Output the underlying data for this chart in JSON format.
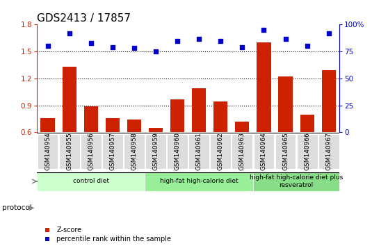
{
  "title": "GDS2413 / 17857",
  "samples": [
    "GSM140954",
    "GSM140955",
    "GSM140956",
    "GSM140957",
    "GSM140958",
    "GSM140959",
    "GSM140960",
    "GSM140961",
    "GSM140962",
    "GSM140963",
    "GSM140964",
    "GSM140965",
    "GSM140966",
    "GSM140967"
  ],
  "zscore": [
    0.76,
    1.33,
    0.89,
    0.76,
    0.74,
    0.65,
    0.97,
    1.09,
    0.94,
    0.72,
    1.6,
    1.22,
    0.8,
    1.29
  ],
  "percentile": [
    80,
    92,
    83,
    79,
    78,
    75,
    85,
    87,
    85,
    79,
    95,
    87,
    80,
    92
  ],
  "bar_color": "#cc2200",
  "dot_color": "#0000cc",
  "ylim_left": [
    0.6,
    1.8
  ],
  "ylim_right": [
    0,
    100
  ],
  "yticks_left": [
    0.6,
    0.9,
    1.2,
    1.5,
    1.8
  ],
  "yticks_right": [
    0,
    25,
    50,
    75,
    100
  ],
  "hline_values": [
    0.9,
    1.2,
    1.5
  ],
  "groups": [
    {
      "label": "control diet",
      "start": 0,
      "end": 4,
      "color": "#ccffcc"
    },
    {
      "label": "high-fat high-calorie diet",
      "start": 5,
      "end": 9,
      "color": "#99ee99"
    },
    {
      "label": "high-fat high-calorie diet plus\nresveratrol",
      "start": 10,
      "end": 13,
      "color": "#88dd88"
    }
  ],
  "protocol_label": "protocol",
  "legend_zscore": "Z-score",
  "legend_percentile": "percentile rank within the sample",
  "plot_bg_color": "#ffffff",
  "tick_box_color": "#dddddd",
  "title_fontsize": 11,
  "tick_label_fontsize": 6.5
}
